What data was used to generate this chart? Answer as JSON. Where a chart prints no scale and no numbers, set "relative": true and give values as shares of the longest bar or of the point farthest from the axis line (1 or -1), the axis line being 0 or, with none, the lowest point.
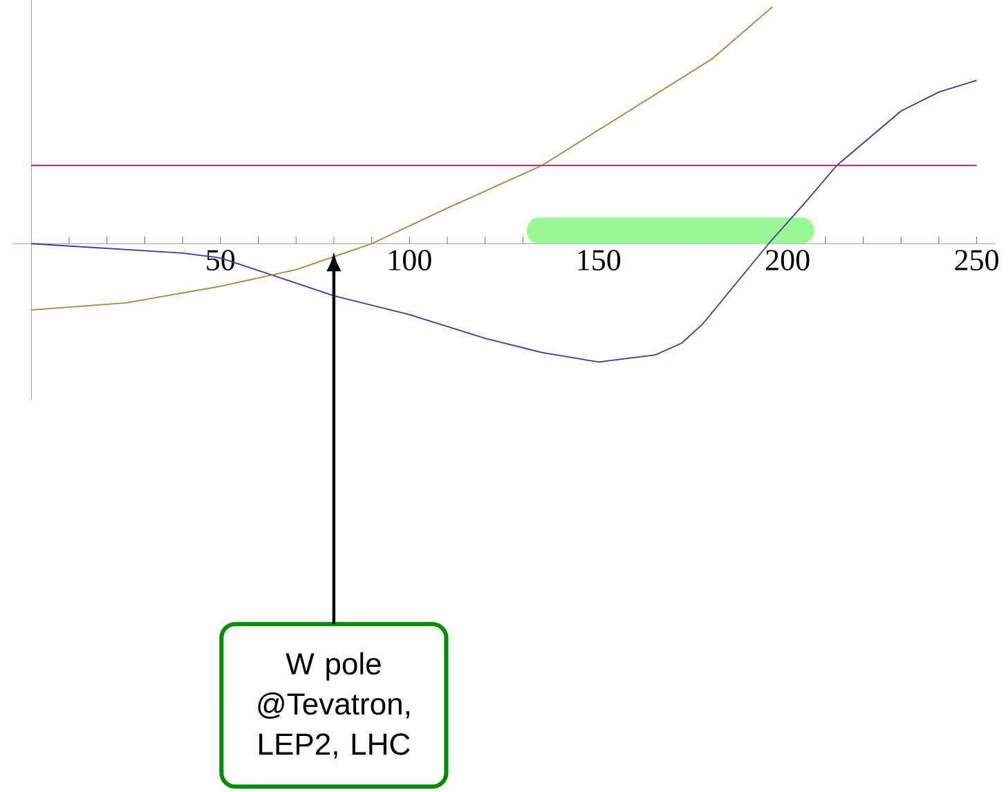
{
  "chart_data": {
    "type": "line",
    "relative": true,
    "xlim": [
      -5,
      255
    ],
    "xticks": [
      {
        "value": 10,
        "label": null
      },
      {
        "value": 20,
        "label": null
      },
      {
        "value": 30,
        "label": null
      },
      {
        "value": 40,
        "label": null
      },
      50,
      {
        "value": 60,
        "label": null
      },
      {
        "value": 70,
        "label": null
      },
      {
        "value": 80,
        "label": null
      },
      {
        "value": 90,
        "label": null
      },
      100,
      {
        "value": 110,
        "label": null
      },
      {
        "value": 120,
        "label": null
      },
      {
        "value": 130,
        "label": null
      },
      {
        "value": 140,
        "label": null
      },
      150,
      {
        "value": 160,
        "label": null
      },
      {
        "value": 170,
        "label": null
      },
      {
        "value": 180,
        "label": null
      },
      {
        "value": 190,
        "label": null
      },
      200,
      {
        "value": 210,
        "label": null
      },
      {
        "value": 220,
        "label": null
      },
      {
        "value": 230,
        "label": null
      },
      {
        "value": 240,
        "label": null
      },
      250
    ],
    "series": [
      {
        "color": "#3a3a9e",
        "x": [
          0,
          20,
          40,
          50,
          65,
          80,
          100,
          120,
          135,
          150,
          165,
          172,
          177.5,
          195,
          205,
          213,
          230,
          240,
          250
        ],
        "values": [
          0,
          -0.02,
          -0.04,
          -0.06,
          -0.14,
          -0.22,
          -0.3,
          -0.4,
          -0.46,
          -0.5,
          -0.47,
          -0.42,
          -0.34,
          0,
          0.18,
          0.33,
          0.56,
          0.64,
          0.69
        ]
      },
      {
        "color": "#9a8a3a",
        "x": [
          0,
          25,
          50,
          70,
          90,
          110,
          135,
          160,
          180,
          196
        ],
        "values": [
          -0.28,
          -0.25,
          -0.18,
          -0.11,
          0,
          0.15,
          0.33,
          0.58,
          0.78,
          1
        ]
      },
      {
        "color": "#a0306a",
        "x": [
          0,
          250
        ],
        "values": [
          0.33,
          0.33
        ]
      }
    ],
    "bands": [
      {
        "axis": "x",
        "from": 131,
        "to": 207,
        "color": "#99f999"
      }
    ],
    "annotations": [
      "W pole @Tevatron, LEP2, LHC"
    ]
  }
}
